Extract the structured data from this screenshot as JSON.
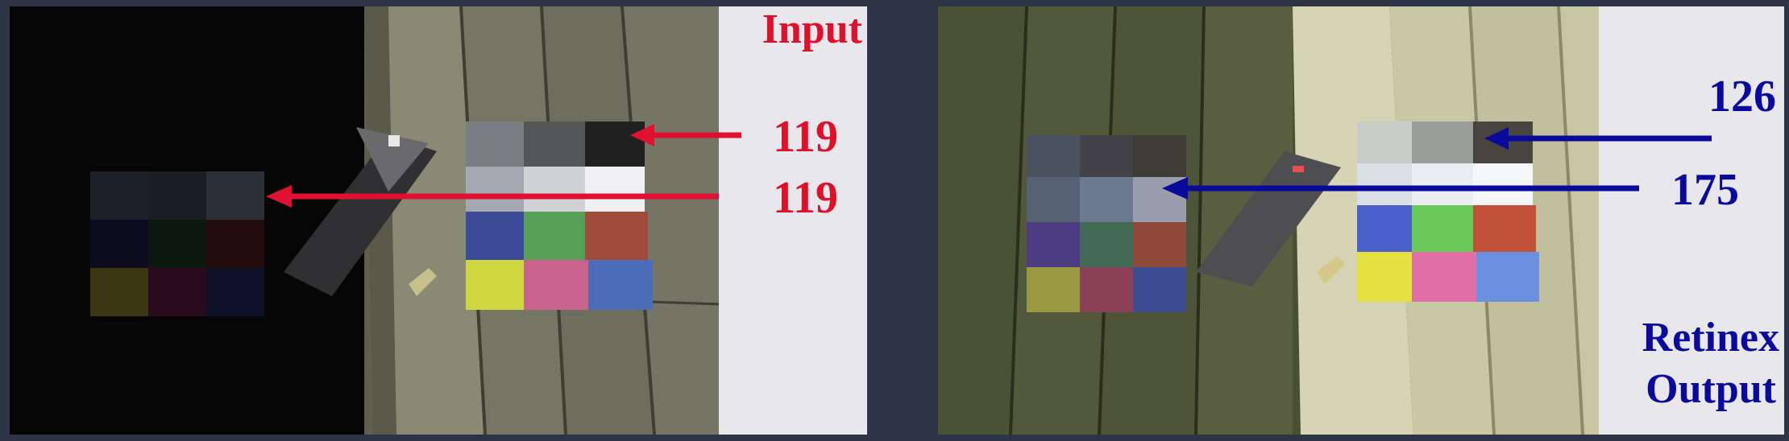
{
  "input_panel": {
    "title": "Input",
    "value_top": "119",
    "value_bottom": "119",
    "label_color": "#e0102a",
    "arrow_color": "#e01030"
  },
  "output_panel": {
    "title_line1": "Retinex",
    "title_line2": "Output",
    "value_top": "126",
    "value_bottom": "175",
    "label_color": "#0a0aa0",
    "arrow_color": "#0a0a9a"
  },
  "colors": {
    "frame_background": "#2c3446",
    "right_strip": "#e8e8ec"
  }
}
